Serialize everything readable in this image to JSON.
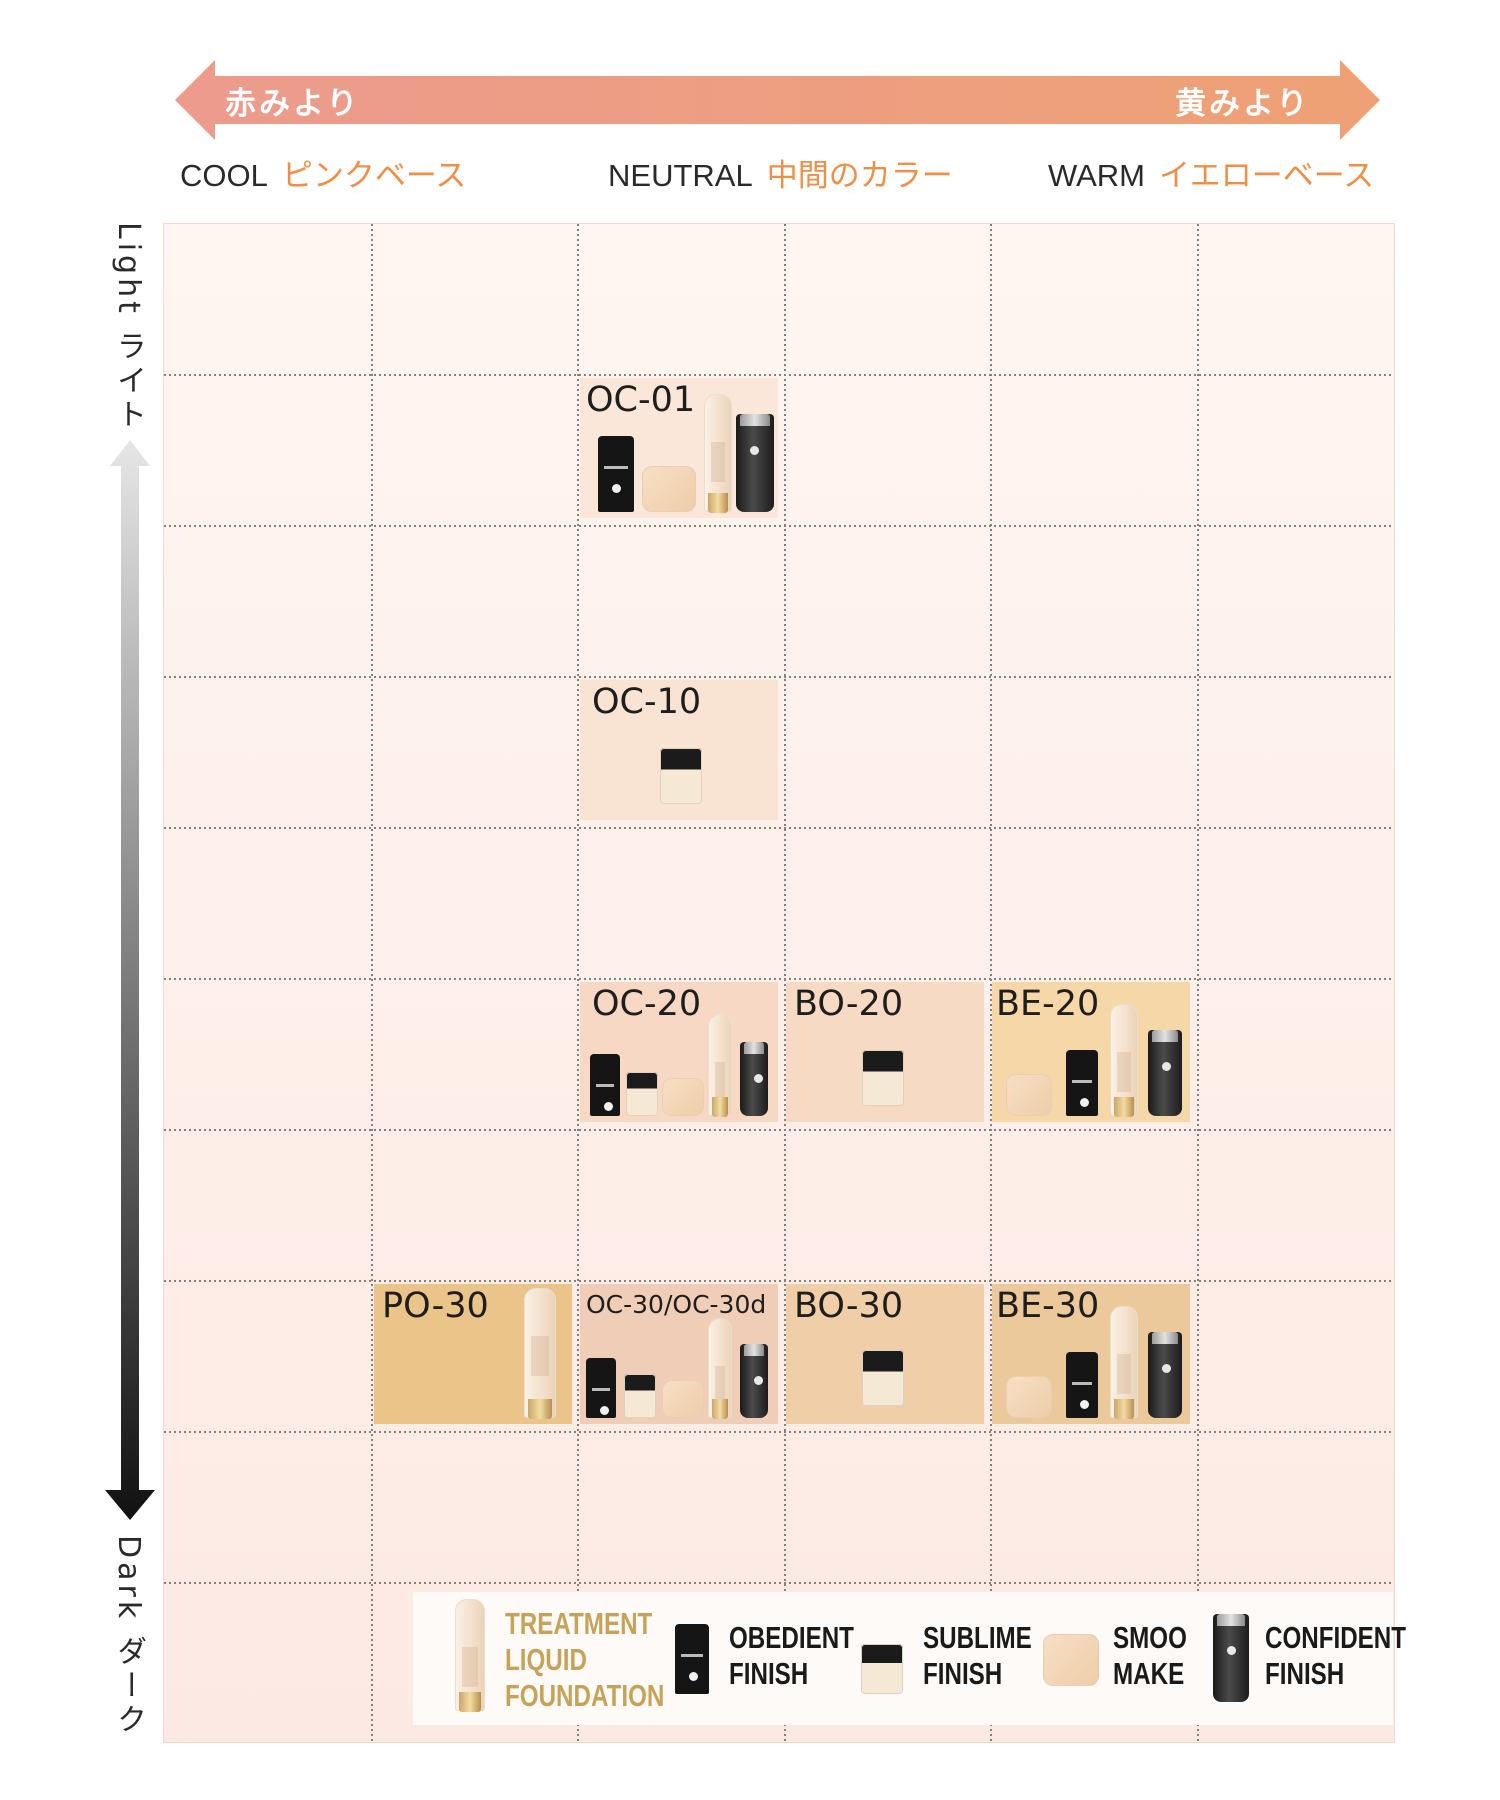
{
  "arrow": {
    "left": "赤みより",
    "right": "黄みより",
    "color_left": "#ec9b8d",
    "color_right": "#efa175"
  },
  "tones": {
    "cool": {
      "en": "COOL",
      "jp": "ピンクベース"
    },
    "neutral": {
      "en": "NEUTRAL",
      "jp": "中間のカラー"
    },
    "warm": {
      "en": "WARM",
      "jp": "イエローベース"
    }
  },
  "axis": {
    "light": "Light ライト",
    "dark": "Dark ダーク"
  },
  "shades": [
    {
      "code": "OC-01",
      "products": [
        "obedient-finish",
        "smoo-make",
        "treatment-liquid-foundation",
        "confident-finish"
      ],
      "color": "#fbe7da"
    },
    {
      "code": "OC-10",
      "products": [
        "sublime-finish"
      ],
      "color": "#f9e3d2"
    },
    {
      "code": "OC-20",
      "products": [
        "obedient-finish",
        "sublime-finish",
        "smoo-make",
        "treatment-liquid-foundation",
        "confident-finish"
      ],
      "color": "#f6d8c4"
    },
    {
      "code": "BO-20",
      "products": [
        "sublime-finish"
      ],
      "color": "#f7dac4"
    },
    {
      "code": "BE-20",
      "products": [
        "smoo-make",
        "obedient-finish",
        "treatment-liquid-foundation",
        "confident-finish"
      ],
      "color": "#f5d7a8"
    },
    {
      "code": "PO-30",
      "products": [
        "treatment-liquid-foundation"
      ],
      "color": "#ebc489"
    },
    {
      "code": "OC-30/OC-30d",
      "products": [
        "obedient-finish",
        "sublime-finish",
        "smoo-make",
        "treatment-liquid-foundation",
        "confident-finish"
      ],
      "color": "#f0cdb7"
    },
    {
      "code": "BO-30",
      "products": [
        "sublime-finish"
      ],
      "color": "#f0cfa8"
    },
    {
      "code": "BE-30",
      "products": [
        "smoo-make",
        "obedient-finish",
        "treatment-liquid-foundation",
        "confident-finish"
      ],
      "color": "#ecc99a"
    }
  ],
  "legend": {
    "treatment": [
      "TREATMENT",
      "LIQUID",
      "FOUNDATION"
    ],
    "obedient": [
      "OBEDIENT",
      "FINISH"
    ],
    "sublime": [
      "SUBLIME",
      "FINISH"
    ],
    "smoo": [
      "SMOO",
      "MAKE"
    ],
    "confident": [
      "CONFIDENT",
      "FINISH"
    ]
  }
}
